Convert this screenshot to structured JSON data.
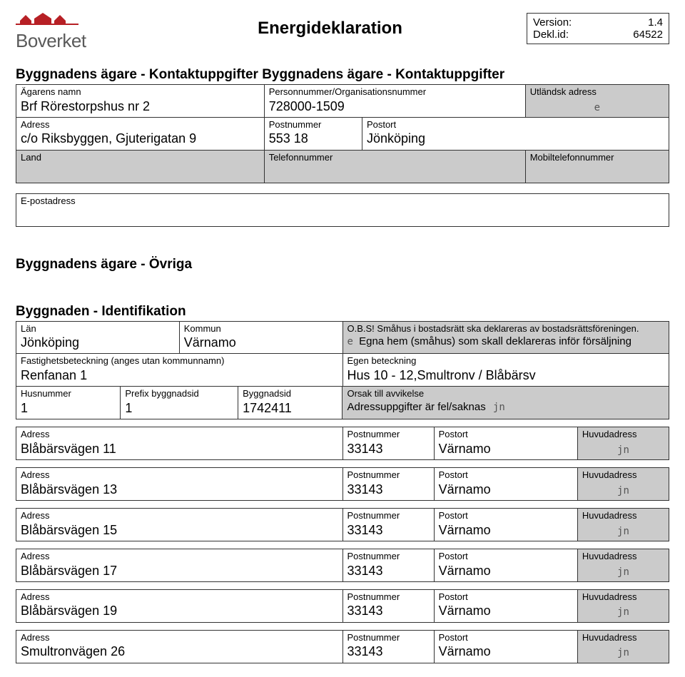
{
  "header": {
    "logo_text": "Boverket",
    "doc_title": "Energideklaration",
    "meta": {
      "version_label": "Version:",
      "version_value": "1.4",
      "dekl_label": "Dekl.id:",
      "dekl_value": "64522"
    },
    "logo_colors": {
      "red": "#b72025",
      "grey": "#5a5a5a"
    }
  },
  "owner": {
    "section_title": "Byggnadens ägare - Kontaktuppgifter Byggnadens ägare - Kontaktuppgifter",
    "name_label": "Ägarens namn",
    "name_value": "Brf Rörestorpshus nr 2",
    "orgnr_label": "Personnummer/Organisationsnummer",
    "orgnr_value": "728000-1509",
    "foreign_label": "Utländsk adress",
    "foreign_symbol": "e",
    "addr_label": "Adress",
    "addr_value": "c/o Riksbyggen, Gjuterigatan 9",
    "postnr_label": "Postnummer",
    "postnr_value": "553 18",
    "postort_label": "Postort",
    "postort_value": "Jönköping",
    "land_label": "Land",
    "tel_label": "Telefonnummer",
    "mobil_label": "Mobiltelefonnummer",
    "epost_label": "E-postadress"
  },
  "other_owners_title": "Byggnadens ägare - Övriga",
  "building": {
    "section_title": "Byggnaden - Identifikation",
    "lan_label": "Län",
    "lan_value": "Jönköping",
    "kommun_label": "Kommun",
    "kommun_value": "Värnamo",
    "obs_text": "O.B.S! Småhus i bostadsrätt ska deklareras av bostadsrättsföreningen.",
    "egna_hem_symbol": "e",
    "egna_hem_text": "Egna hem (småhus) som skall deklareras inför försäljning",
    "fastighet_label": "Fastighetsbeteckning (anges utan kommunnamn)",
    "fastighet_value": "Renfanan 1",
    "egen_label": "Egen beteckning",
    "egen_value": "Hus 10 - 12,Smultronv / Blåbärsv",
    "husnr_label": "Husnummer",
    "husnr_value": "1",
    "prefix_label": "Prefix byggnadsid",
    "prefix_value": "1",
    "byggid_label": "Byggnadsid",
    "byggid_value": "1742411",
    "orsak_label": "Orsak till avvikelse",
    "orsak_text": "Adressuppgifter är fel/saknas",
    "orsak_symbol": "jn"
  },
  "addresses": {
    "addr_label": "Adress",
    "postnr_label": "Postnummer",
    "postort_label": "Postort",
    "huvud_label": "Huvudadress",
    "huvud_symbol": "jn",
    "rows": [
      {
        "addr": "Blåbärsvägen 11",
        "postnr": "33143",
        "postort": "Värnamo"
      },
      {
        "addr": "Blåbärsvägen 13",
        "postnr": "33143",
        "postort": "Värnamo"
      },
      {
        "addr": "Blåbärsvägen 15",
        "postnr": "33143",
        "postort": "Värnamo"
      },
      {
        "addr": "Blåbärsvägen 17",
        "postnr": "33143",
        "postort": "Värnamo"
      },
      {
        "addr": "Blåbärsvägen 19",
        "postnr": "33143",
        "postort": "Värnamo"
      },
      {
        "addr": "Smultronvägen 26",
        "postnr": "33143",
        "postort": "Värnamo"
      }
    ]
  },
  "colors": {
    "background": "#ffffff",
    "text": "#000000",
    "border": "#333333",
    "grey_fill": "#cbcbcb"
  }
}
